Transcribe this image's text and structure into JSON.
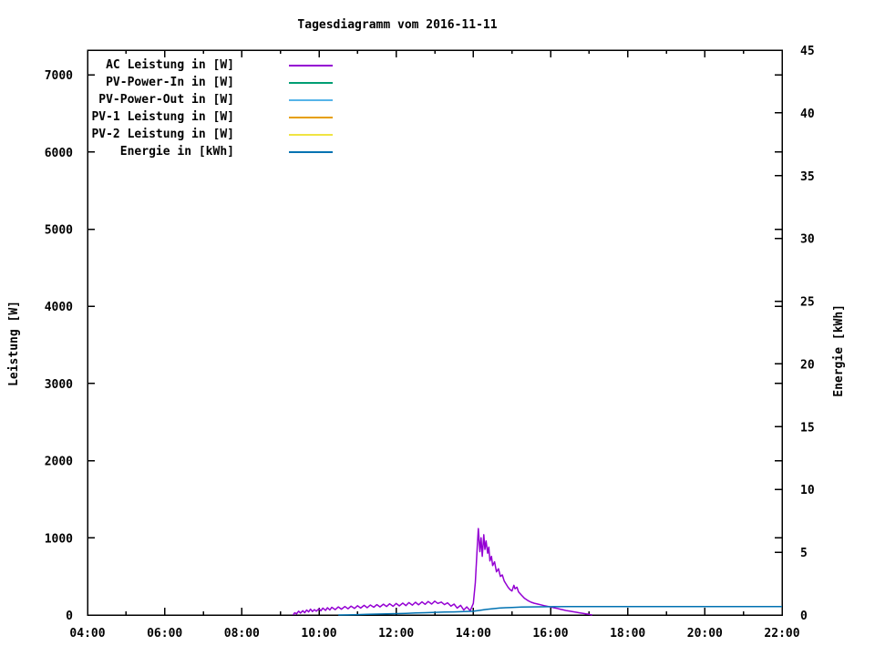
{
  "chart_data": {
    "type": "line",
    "title": "Tagesdiagramm vom 2016-11-11",
    "ylabel_left": "Leistung [W]",
    "ylabel_right": "Energie [kWh]",
    "legend_position": "top-left-inside",
    "grid": false,
    "x_axis": {
      "min": 4,
      "max": 22,
      "major_step": 2,
      "minor_step": 1,
      "tick_labels": [
        "04:00",
        "06:00",
        "08:00",
        "10:00",
        "12:00",
        "14:00",
        "16:00",
        "18:00",
        "20:00",
        "22:00"
      ]
    },
    "y1_axis": {
      "min": 0,
      "max": 7320,
      "tick_step": 1000,
      "last_labeled_tick": 7000,
      "tick_labels": [
        "0",
        "1000",
        "2000",
        "3000",
        "4000",
        "5000",
        "6000",
        "7000"
      ]
    },
    "y2_axis": {
      "min": 0,
      "max": 45,
      "tick_step": 5,
      "tick_labels": [
        "0",
        "5",
        "10",
        "15",
        "20",
        "25",
        "30",
        "35",
        "40",
        "45"
      ]
    },
    "series": [
      {
        "name": "ac-leistung",
        "label": "AC Leistung in [W]",
        "color": "#9400d3",
        "axis": "y1",
        "points": [
          [
            9.33,
            0
          ],
          [
            9.37,
            30
          ],
          [
            9.42,
            15
          ],
          [
            9.47,
            50
          ],
          [
            9.52,
            25
          ],
          [
            9.58,
            55
          ],
          [
            9.63,
            30
          ],
          [
            9.68,
            65
          ],
          [
            9.73,
            40
          ],
          [
            9.78,
            75
          ],
          [
            9.83,
            45
          ],
          [
            9.88,
            70
          ],
          [
            9.93,
            50
          ],
          [
            10.0,
            80
          ],
          [
            10.05,
            55
          ],
          [
            10.1,
            90
          ],
          [
            10.17,
            60
          ],
          [
            10.22,
            95
          ],
          [
            10.28,
            65
          ],
          [
            10.33,
            100
          ],
          [
            10.42,
            70
          ],
          [
            10.5,
            105
          ],
          [
            10.58,
            75
          ],
          [
            10.67,
            110
          ],
          [
            10.75,
            80
          ],
          [
            10.83,
            115
          ],
          [
            10.92,
            85
          ],
          [
            11.0,
            120
          ],
          [
            11.08,
            90
          ],
          [
            11.17,
            125
          ],
          [
            11.25,
            95
          ],
          [
            11.33,
            130
          ],
          [
            11.42,
            100
          ],
          [
            11.5,
            135
          ],
          [
            11.58,
            105
          ],
          [
            11.67,
            140
          ],
          [
            11.75,
            110
          ],
          [
            11.83,
            145
          ],
          [
            11.92,
            112
          ],
          [
            12.0,
            150
          ],
          [
            12.08,
            118
          ],
          [
            12.17,
            155
          ],
          [
            12.25,
            122
          ],
          [
            12.33,
            160
          ],
          [
            12.42,
            128
          ],
          [
            12.5,
            165
          ],
          [
            12.58,
            132
          ],
          [
            12.67,
            170
          ],
          [
            12.75,
            138
          ],
          [
            12.83,
            175
          ],
          [
            12.92,
            142
          ],
          [
            13.0,
            180
          ],
          [
            13.08,
            150
          ],
          [
            13.17,
            168
          ],
          [
            13.25,
            135
          ],
          [
            13.33,
            158
          ],
          [
            13.42,
            115
          ],
          [
            13.5,
            142
          ],
          [
            13.58,
            90
          ],
          [
            13.67,
            125
          ],
          [
            13.75,
            65
          ],
          [
            13.83,
            105
          ],
          [
            13.92,
            55
          ],
          [
            14.0,
            150
          ],
          [
            14.05,
            420
          ],
          [
            14.1,
            880
          ],
          [
            14.13,
            1120
          ],
          [
            14.17,
            820
          ],
          [
            14.2,
            1000
          ],
          [
            14.23,
            760
          ],
          [
            14.27,
            1040
          ],
          [
            14.3,
            850
          ],
          [
            14.33,
            960
          ],
          [
            14.37,
            800
          ],
          [
            14.4,
            880
          ],
          [
            14.43,
            700
          ],
          [
            14.47,
            760
          ],
          [
            14.5,
            640
          ],
          [
            14.55,
            690
          ],
          [
            14.6,
            560
          ],
          [
            14.65,
            600
          ],
          [
            14.7,
            500
          ],
          [
            14.75,
            520
          ],
          [
            14.8,
            440
          ],
          [
            14.85,
            400
          ],
          [
            14.9,
            360
          ],
          [
            14.95,
            330
          ],
          [
            15.0,
            310
          ],
          [
            15.05,
            385
          ],
          [
            15.08,
            340
          ],
          [
            15.13,
            360
          ],
          [
            15.17,
            300
          ],
          [
            15.25,
            255
          ],
          [
            15.33,
            215
          ],
          [
            15.42,
            185
          ],
          [
            15.5,
            165
          ],
          [
            15.58,
            152
          ],
          [
            15.67,
            142
          ],
          [
            15.75,
            132
          ],
          [
            15.83,
            122
          ],
          [
            15.92,
            112
          ],
          [
            16.0,
            104
          ],
          [
            16.08,
            95
          ],
          [
            16.17,
            86
          ],
          [
            16.25,
            76
          ],
          [
            16.33,
            66
          ],
          [
            16.42,
            56
          ],
          [
            16.5,
            50
          ],
          [
            16.58,
            42
          ],
          [
            16.67,
            35
          ],
          [
            16.75,
            28
          ],
          [
            16.83,
            22
          ],
          [
            16.92,
            14
          ],
          [
            17.0,
            8
          ],
          [
            17.08,
            0
          ]
        ]
      },
      {
        "name": "pv-power-in",
        "label": "PV-Power-In in [W]",
        "color": "#009e73",
        "axis": "y1",
        "points": []
      },
      {
        "name": "pv-power-out",
        "label": "PV-Power-Out in [W]",
        "color": "#56b4e9",
        "axis": "y1",
        "points": []
      },
      {
        "name": "pv1-leistung",
        "label": "PV-1 Leistung in [W]",
        "color": "#e69f00",
        "axis": "y1",
        "points": []
      },
      {
        "name": "pv2-leistung",
        "label": "PV-2 Leistung in [W]",
        "color": "#f0e442",
        "axis": "y1",
        "points": []
      },
      {
        "name": "energie",
        "label": "Energie in [kWh]",
        "color": "#0072b2",
        "axis": "y2",
        "points": [
          [
            10.5,
            0
          ],
          [
            10.75,
            0.01
          ],
          [
            11.0,
            0.03
          ],
          [
            11.25,
            0.05
          ],
          [
            11.5,
            0.07
          ],
          [
            11.75,
            0.09
          ],
          [
            12.0,
            0.11
          ],
          [
            12.25,
            0.13
          ],
          [
            12.5,
            0.16
          ],
          [
            12.75,
            0.18
          ],
          [
            13.0,
            0.21
          ],
          [
            13.25,
            0.23
          ],
          [
            13.5,
            0.25
          ],
          [
            13.75,
            0.27
          ],
          [
            14.0,
            0.3
          ],
          [
            14.17,
            0.37
          ],
          [
            14.33,
            0.44
          ],
          [
            14.5,
            0.5
          ],
          [
            14.67,
            0.55
          ],
          [
            14.83,
            0.58
          ],
          [
            15.0,
            0.6
          ],
          [
            15.25,
            0.63
          ],
          [
            15.5,
            0.645
          ],
          [
            15.75,
            0.655
          ],
          [
            16.0,
            0.66
          ],
          [
            16.5,
            0.665
          ],
          [
            17.0,
            0.67
          ],
          [
            18.0,
            0.67
          ],
          [
            19.0,
            0.67
          ],
          [
            20.0,
            0.67
          ],
          [
            21.0,
            0.67
          ],
          [
            22.0,
            0.67
          ]
        ]
      }
    ]
  }
}
